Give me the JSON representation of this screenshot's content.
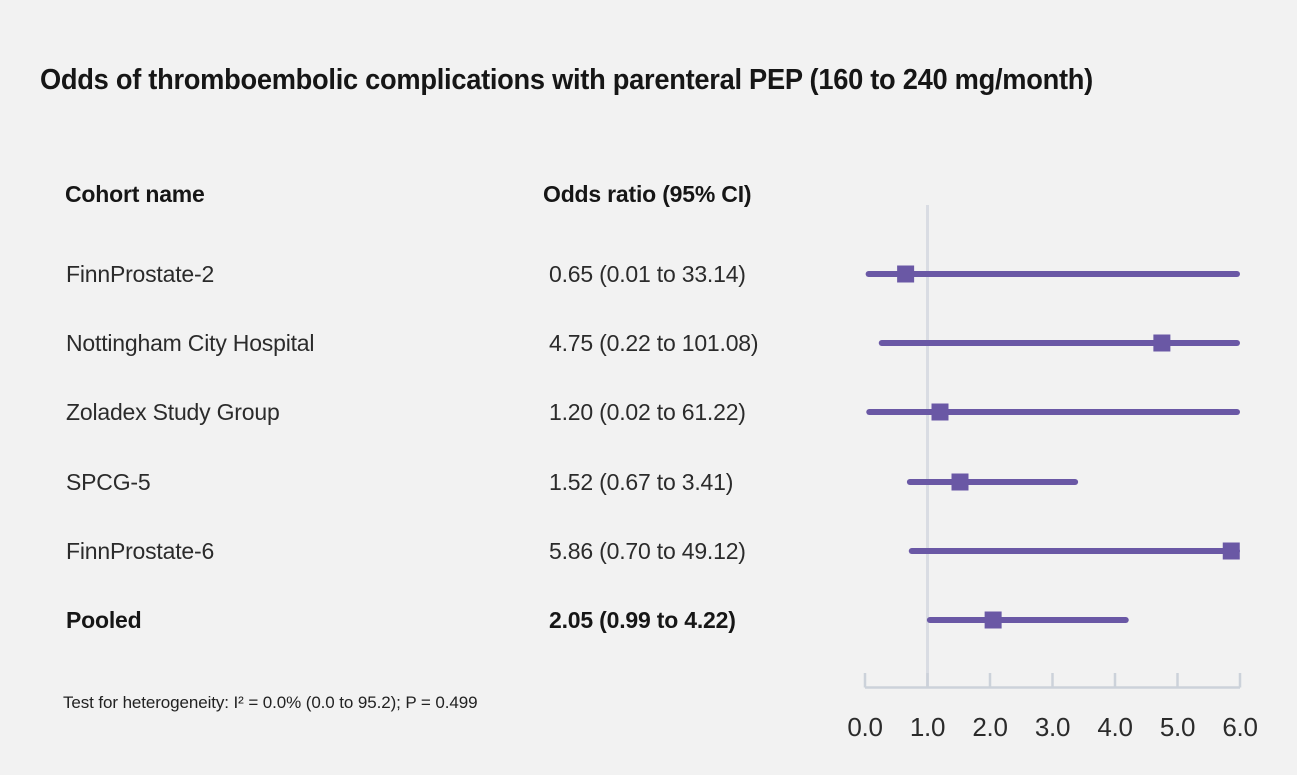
{
  "figure": {
    "title": "Odds of thromboembolic complications with parenteral PEP (160 to 240 mg/month)",
    "col_cohort": "Cohort name",
    "col_odds": "Odds ratio (95% CI)",
    "footnote": "Test for heterogeneity: I² = 0.0% (0.0 to 95.2); P = 0.499"
  },
  "chart_data": {
    "type": "forest",
    "title": "Odds of thromboembolic complications with parenteral PEP (160 to 240 mg/month)",
    "categories": [
      "FinnProstate-2",
      "Nottingham City Hospital",
      "Zoladex Study Group",
      "SPCG-5",
      "FinnProstate-6",
      "Pooled"
    ],
    "points": [
      {
        "label": "FinnProstate-2",
        "or_text": "0.65 (0.01 to 33.14)",
        "or": 0.65,
        "ci_low": 0.01,
        "ci_high": 33.14,
        "pooled": false
      },
      {
        "label": "Nottingham City Hospital",
        "or_text": "4.75 (0.22 to 101.08)",
        "or": 4.75,
        "ci_low": 0.22,
        "ci_high": 101.08,
        "pooled": false
      },
      {
        "label": "Zoladex Study Group",
        "or_text": "1.20 (0.02 to 61.22)",
        "or": 1.2,
        "ci_low": 0.02,
        "ci_high": 61.22,
        "pooled": false
      },
      {
        "label": "SPCG-5",
        "or_text": "1.52 (0.67 to 3.41)",
        "or": 1.52,
        "ci_low": 0.67,
        "ci_high": 3.41,
        "pooled": false
      },
      {
        "label": "FinnProstate-6",
        "or_text": "5.86 (0.70 to 49.12)",
        "or": 5.86,
        "ci_low": 0.7,
        "ci_high": 49.12,
        "pooled": false
      },
      {
        "label": "Pooled",
        "or_text": "2.05 (0.99 to 4.22)",
        "or": 2.05,
        "ci_low": 0.99,
        "ci_high": 4.22,
        "pooled": true
      }
    ],
    "xlabel": "",
    "xlim": [
      0,
      6
    ],
    "x_ticks": [
      0,
      1,
      2,
      3,
      4,
      5,
      6
    ],
    "x_tick_labels": [
      "0.0",
      "1.0",
      "2.0",
      "3.0",
      "4.0",
      "5.0",
      "6.0"
    ],
    "reference_line": 1.0,
    "clamp_max": 6.0,
    "marker": "square",
    "legend": "none",
    "grid": "off",
    "heterogeneity_note": "Test for heterogeneity: I² = 0.0% (0.0 to 95.2); P = 0.499",
    "colors": {
      "marker": "#6a58a5",
      "axis": "#ccd2da",
      "reference_line": "#d9dce3",
      "background": "#f2f2f2",
      "text": "#2b2b2b"
    }
  }
}
